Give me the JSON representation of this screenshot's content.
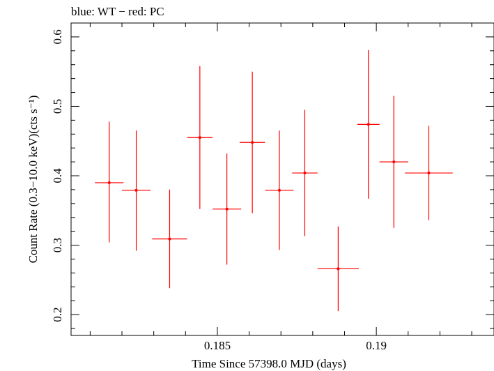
{
  "chart_data": {
    "type": "scatter",
    "title": "blue: WT − red: PC",
    "xlabel": "Time Since 57398.0 MJD (days)",
    "ylabel": "Count Rate (0.3−10.0 keV)(cts s⁻¹)",
    "xlim": [
      0.1804,
      0.1937
    ],
    "ylim": [
      0.17,
      0.62
    ],
    "x_major_ticks": [
      0.185,
      0.19
    ],
    "x_tick_labels": [
      "0.185",
      "0.19"
    ],
    "y_major_ticks": [
      0.2,
      0.3,
      0.4,
      0.5,
      0.6
    ],
    "y_tick_labels": [
      "0.2",
      "0.3",
      "0.4",
      "0.5",
      "0.6"
    ],
    "grid": false,
    "series": [
      {
        "color": "#ff0000",
        "points": [
          {
            "x": 0.1816,
            "y": 0.39,
            "xerr": 0.00045,
            "yerr_low": 0.086,
            "yerr_high": 0.088
          },
          {
            "x": 0.18245,
            "y": 0.379,
            "xerr": 0.00045,
            "yerr_low": 0.087,
            "yerr_high": 0.086
          },
          {
            "x": 0.1835,
            "y": 0.309,
            "xerr": 0.00055,
            "yerr_low": 0.071,
            "yerr_high": 0.071
          },
          {
            "x": 0.18445,
            "y": 0.455,
            "xerr": 0.0004,
            "yerr_low": 0.103,
            "yerr_high": 0.103
          },
          {
            "x": 0.1853,
            "y": 0.352,
            "xerr": 0.00045,
            "yerr_low": 0.08,
            "yerr_high": 0.08
          },
          {
            "x": 0.1861,
            "y": 0.448,
            "xerr": 0.0004,
            "yerr_low": 0.102,
            "yerr_high": 0.102
          },
          {
            "x": 0.18695,
            "y": 0.379,
            "xerr": 0.00045,
            "yerr_low": 0.086,
            "yerr_high": 0.086
          },
          {
            "x": 0.18775,
            "y": 0.404,
            "xerr": 0.0004,
            "yerr_low": 0.091,
            "yerr_high": 0.091
          },
          {
            "x": 0.1888,
            "y": 0.266,
            "xerr": 0.00065,
            "yerr_low": 0.061,
            "yerr_high": 0.061
          },
          {
            "x": 0.18975,
            "y": 0.474,
            "xerr": 0.00035,
            "yerr_low": 0.107,
            "yerr_high": 0.107
          },
          {
            "x": 0.19055,
            "y": 0.42,
            "xerr": 0.00045,
            "yerr_low": 0.095,
            "yerr_high": 0.095
          },
          {
            "x": 0.19165,
            "y": 0.404,
            "xerr": 0.00075,
            "yerr_low": 0.068,
            "yerr_high": 0.068
          }
        ]
      }
    ]
  }
}
